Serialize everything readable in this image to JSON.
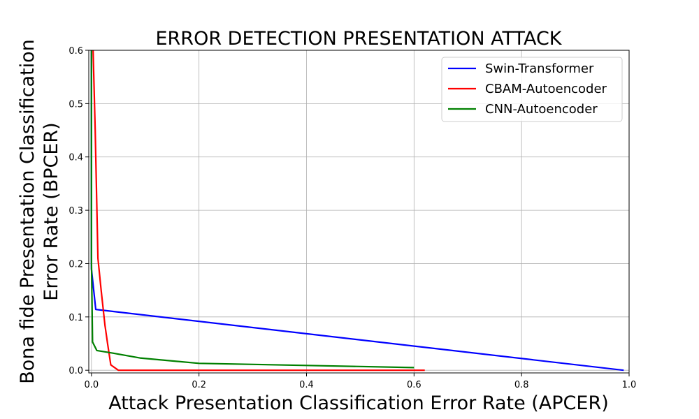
{
  "chart_data": {
    "type": "line",
    "title": "ERROR DETECTION PRESENTATION ATTACK",
    "xlabel": "Attack Presentation Classification Error Rate (APCER)",
    "ylabel_lines": [
      "Bona fide Presentation Classification",
      "Error Rate (BPCER)"
    ],
    "xlim": [
      -0.005,
      1.0
    ],
    "ylim": [
      -0.005,
      0.6
    ],
    "xticks": [
      0.0,
      0.2,
      0.4,
      0.6,
      0.8,
      1.0
    ],
    "xtick_labels": [
      "0.0",
      "0.2",
      "0.4",
      "0.6",
      "0.8",
      "1.0"
    ],
    "yticks": [
      0.0,
      0.1,
      0.2,
      0.3,
      0.4,
      0.5,
      0.6
    ],
    "ytick_labels": [
      "0.0",
      "0.1",
      "0.2",
      "0.3",
      "0.4",
      "0.5",
      "0.6"
    ],
    "grid": true,
    "legend_position": "top-right",
    "series": [
      {
        "name": "Swin-Transformer",
        "color": "#0000ff",
        "x": [
          0.0,
          0.0,
          0.008,
          0.99
        ],
        "y": [
          0.6,
          0.19,
          0.114,
          0.0
        ]
      },
      {
        "name": "CBAM-Autoencoder",
        "color": "#ff0000",
        "x": [
          0.003,
          0.007,
          0.012,
          0.018,
          0.025,
          0.03,
          0.036,
          0.05,
          0.62
        ],
        "y": [
          0.6,
          0.45,
          0.21,
          0.15,
          0.085,
          0.05,
          0.01,
          0.0,
          0.0
        ]
      },
      {
        "name": "CNN-Autoencoder",
        "color": "#008000",
        "x": [
          0.0,
          0.0,
          0.002,
          0.01,
          0.04,
          0.09,
          0.2,
          0.4,
          0.6
        ],
        "y": [
          0.6,
          0.21,
          0.053,
          0.037,
          0.032,
          0.023,
          0.013,
          0.009,
          0.005
        ]
      }
    ]
  }
}
